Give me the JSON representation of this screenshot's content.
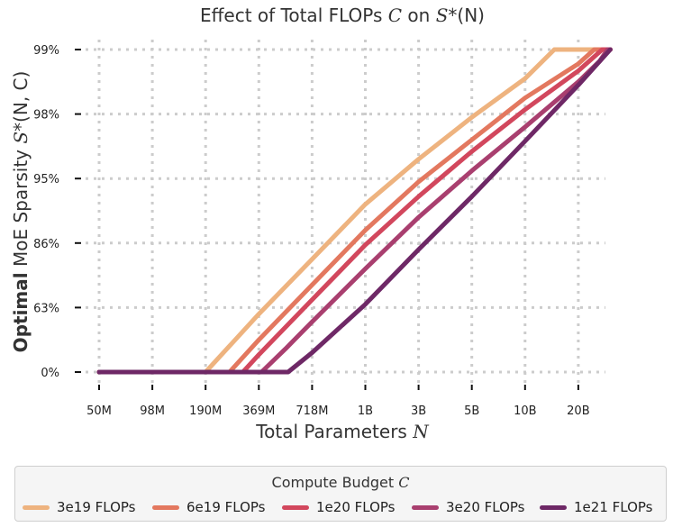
{
  "chart_data": {
    "type": "line",
    "title_prefix": "Effect of Total FLOPs ",
    "title_var": "C",
    "title_mid": " on ",
    "title_func": "S",
    "title_star": "*",
    "title_args": "(N)",
    "xlabel_prefix": "Total Parameters ",
    "xlabel_var": "N",
    "ylabel_bold": "Optimal",
    "ylabel_rest": " MoE Sparsity ",
    "ylabel_func": "S",
    "ylabel_star": "*",
    "ylabel_args": "(N, C)",
    "x_ticks": [
      "50M",
      "98M",
      "190M",
      "369M",
      "718M",
      "1B",
      "3B",
      "5B",
      "10B",
      "20B"
    ],
    "y_ticks": [
      "0%",
      "63%",
      "86%",
      "95%",
      "98%",
      "99%"
    ],
    "grid": true,
    "legend_title_prefix": "Compute Budget ",
    "legend_title_var": "C",
    "legend_position": "bottom",
    "series": [
      {
        "name": "3e19 FLOPs",
        "color": "#eeb37f",
        "points": [
          [
            0,
            0
          ],
          [
            2.0,
            0
          ],
          [
            3.0,
            0.9
          ],
          [
            4.0,
            1.75
          ],
          [
            5.0,
            2.6
          ],
          [
            6.0,
            3.3
          ],
          [
            7.0,
            3.95
          ],
          [
            8.0,
            4.55
          ],
          [
            8.55,
            5.0
          ],
          [
            9.6,
            5.0
          ]
        ]
      },
      {
        "name": "6e19 FLOPs",
        "color": "#e3785f",
        "points": [
          [
            0,
            0
          ],
          [
            2.45,
            0
          ],
          [
            3.0,
            0.5
          ],
          [
            4.0,
            1.35
          ],
          [
            5.0,
            2.2
          ],
          [
            6.0,
            2.95
          ],
          [
            7.0,
            3.6
          ],
          [
            8.0,
            4.25
          ],
          [
            9.0,
            4.78
          ],
          [
            9.3,
            5.0
          ],
          [
            9.6,
            5.0
          ]
        ]
      },
      {
        "name": "1e20 FLOPs",
        "color": "#d2475d",
        "points": [
          [
            0,
            0
          ],
          [
            2.7,
            0
          ],
          [
            3.0,
            0.27
          ],
          [
            4.0,
            1.12
          ],
          [
            5.0,
            1.97
          ],
          [
            6.0,
            2.72
          ],
          [
            7.0,
            3.42
          ],
          [
            8.0,
            4.07
          ],
          [
            9.0,
            4.67
          ],
          [
            9.45,
            5.0
          ],
          [
            9.6,
            5.0
          ]
        ]
      },
      {
        "name": "3e20 FLOPs",
        "color": "#a93f6f",
        "points": [
          [
            0,
            0
          ],
          [
            3.05,
            0
          ],
          [
            3.5,
            0.36
          ],
          [
            4.0,
            0.78
          ],
          [
            5.0,
            1.6
          ],
          [
            6.0,
            2.4
          ],
          [
            7.0,
            3.12
          ],
          [
            8.0,
            3.8
          ],
          [
            9.0,
            4.5
          ],
          [
            9.4,
            4.82
          ],
          [
            9.55,
            5.0
          ],
          [
            9.6,
            5.0
          ]
        ]
      },
      {
        "name": "1e21 FLOPs",
        "color": "#6e2866",
        "points": [
          [
            0,
            0
          ],
          [
            3.55,
            0
          ],
          [
            4.0,
            0.3
          ],
          [
            5.0,
            1.05
          ],
          [
            6.0,
            1.9
          ],
          [
            7.0,
            2.72
          ],
          [
            8.0,
            3.58
          ],
          [
            9.0,
            4.45
          ],
          [
            9.6,
            5.0
          ]
        ]
      }
    ]
  }
}
